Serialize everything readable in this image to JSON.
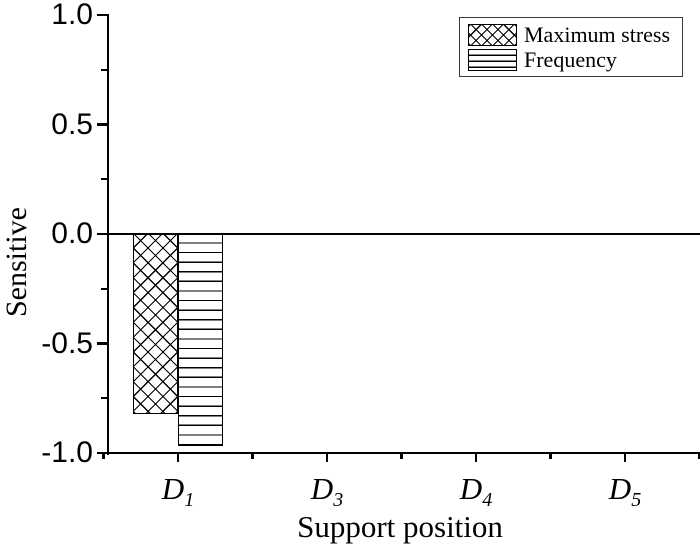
{
  "chart_data": {
    "type": "bar",
    "title": "",
    "xlabel": "Support position",
    "ylabel": "Sensitive",
    "categories": [
      {
        "base": "D",
        "sub": "1"
      },
      {
        "base": "D",
        "sub": "3"
      },
      {
        "base": "D",
        "sub": "4"
      },
      {
        "base": "D",
        "sub": "5"
      }
    ],
    "series": [
      {
        "name": "Maximum stress",
        "pattern": "crosshatch",
        "values": [
          -0.82,
          0,
          0,
          0
        ]
      },
      {
        "name": "Frequency",
        "pattern": "horizontal-lines",
        "values": [
          -0.97,
          0,
          0,
          0
        ]
      }
    ],
    "ylim": [
      -1.0,
      1.0
    ],
    "y_axis": {
      "major_ticks": [
        1.0,
        0.5,
        0.0,
        -0.5,
        -1.0
      ],
      "tick_labels": [
        "1.0",
        "0.5",
        "0.0",
        "-0.5",
        "-1.0"
      ],
      "minor_ticks": [
        0.75,
        0.25,
        -0.25,
        -0.75
      ]
    },
    "x_axis": {
      "minor_tick_offsets": [
        -0.5,
        0.5,
        1.5,
        2.5,
        3.5
      ]
    },
    "zero_line": true,
    "grid": false,
    "legend_position": "top-right",
    "bar_outline_color": "#000000",
    "background_color": "#ffffff"
  }
}
